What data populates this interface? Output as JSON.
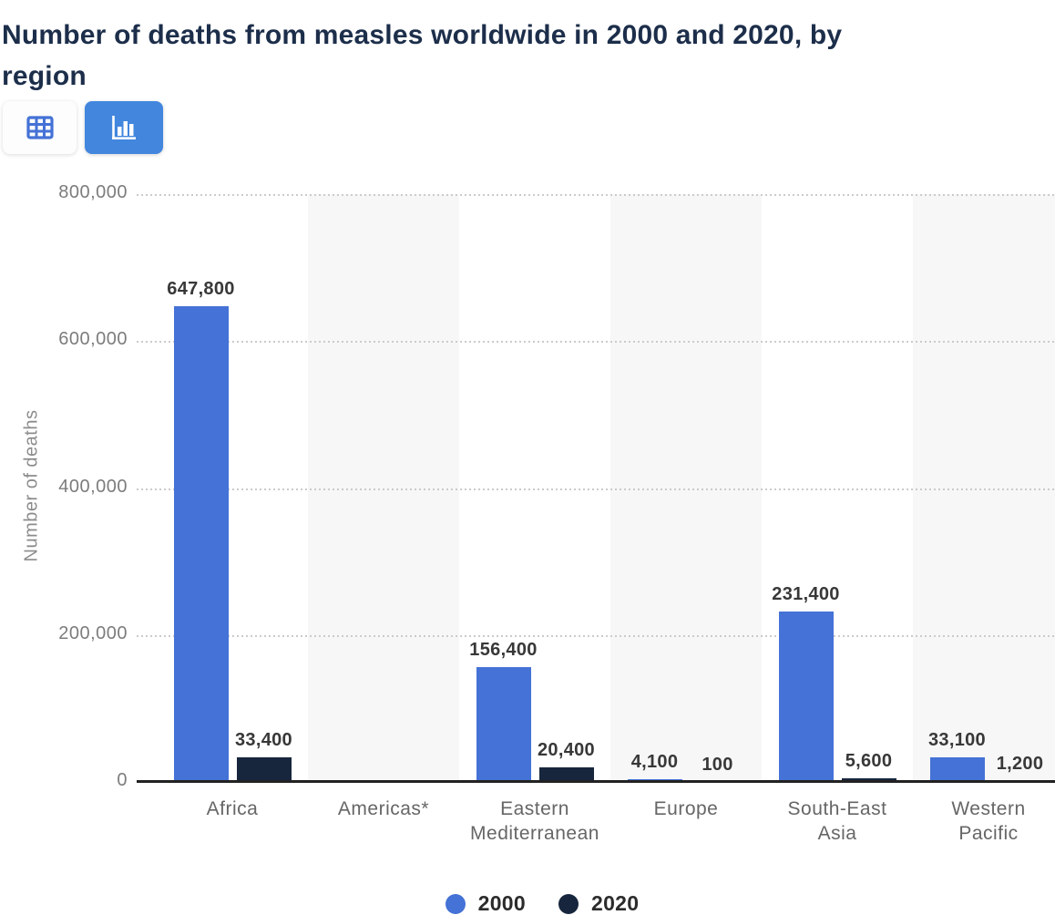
{
  "page": {
    "title": "Number of deaths from measles worldwide in 2000 and 2020, by region",
    "title_line1": "Number of deaths from measles worldwide in 2000 and 2020, by",
    "title_line2": "region"
  },
  "toolbar": {
    "buttons": [
      {
        "name": "table-view",
        "icon": "table-icon",
        "active": false
      },
      {
        "name": "chart-view",
        "icon": "bar-chart-icon",
        "active": true
      }
    ]
  },
  "chart_data": {
    "type": "bar",
    "title": "Number of deaths from measles worldwide in 2000 and 2020, by region",
    "xlabel": "",
    "ylabel": "Number of deaths",
    "categories": [
      "Africa",
      "Americas*",
      "Eastern Mediterranean",
      "Europe",
      "South-East Asia",
      "Western Pacific"
    ],
    "series": [
      {
        "name": "2000",
        "color": "#4472d6",
        "values": [
          647800,
          null,
          156400,
          4100,
          231400,
          33100
        ]
      },
      {
        "name": "2020",
        "color": "#17263d",
        "values": [
          33400,
          null,
          20400,
          100,
          5600,
          1200
        ]
      }
    ],
    "value_labels": {
      "2000": [
        "647,800",
        "",
        "156,400",
        "4,100",
        "231,400",
        "33,100"
      ],
      "2020": [
        "33,400",
        "",
        "20,400",
        "100",
        "5,600",
        "1,200"
      ]
    },
    "ylim": [
      0,
      800000
    ],
    "yticks": [
      0,
      200000,
      400000,
      600000,
      800000
    ],
    "ytick_labels": [
      "0",
      "200,000",
      "400,000",
      "600,000",
      "800,000"
    ],
    "grid": "horizontal-dotted",
    "legend_position": "bottom-center",
    "column_band_color": "#f7f7f7",
    "value_labels_shown": true
  },
  "colors": {
    "title": "#1c2e4a",
    "axis_line": "#222222",
    "gridline": "#cbcbcb",
    "tick_label": "#7c7c7c",
    "x_label": "#666666",
    "value_label": "#383838",
    "legend_label": "#2b2b2b",
    "active_button_bg": "#4286de",
    "icon_blue": "#4472d6",
    "series_2000": "#4472d6",
    "series_2020": "#17263d"
  }
}
